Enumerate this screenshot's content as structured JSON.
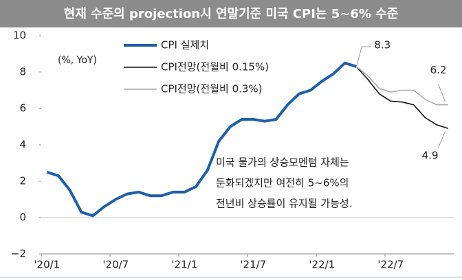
{
  "chart_data": {
    "type": "line",
    "title": "현재 수준의 projection시 연말기준 미국 CPI는 5~6% 수준",
    "unit_label": "(%, YoY)",
    "annotation": [
      "미국 물가의 상승모멘텀 자체는",
      "둔화되겠지만 여전히 5~6%의",
      "전년비 상승률이 유지될 가능성."
    ],
    "categories": [
      "'20/1",
      null,
      null,
      null,
      null,
      null,
      "'20/7",
      null,
      null,
      null,
      null,
      null,
      "'21/1",
      null,
      null,
      null,
      null,
      null,
      "'21/7",
      null,
      null,
      null,
      null,
      null,
      "'22/1",
      null,
      null,
      null,
      null,
      null,
      "'22/7",
      null,
      null,
      null,
      null,
      null
    ],
    "ylim": [
      -2,
      10
    ],
    "yticks": [
      {
        "value": -2,
        "label": "−2"
      },
      0,
      2,
      4,
      6,
      8,
      10
    ],
    "series": [
      {
        "name": "CPI 실제치",
        "color": "#1f5fa8",
        "width": 4,
        "values": [
          2.5,
          2.3,
          1.5,
          0.3,
          0.1,
          0.6,
          1.0,
          1.3,
          1.4,
          1.2,
          1.2,
          1.4,
          1.4,
          1.7,
          2.6,
          4.2,
          5.0,
          5.4,
          5.4,
          5.3,
          5.4,
          6.2,
          6.8,
          7.0,
          7.5,
          7.9,
          8.5,
          8.3,
          null,
          null,
          null,
          null,
          null,
          null,
          null,
          null
        ]
      },
      {
        "name": "CPI전망(전월비 0.15%)",
        "color": "#111111",
        "width": 1.6,
        "values": [
          null,
          null,
          null,
          null,
          null,
          null,
          null,
          null,
          null,
          null,
          null,
          null,
          null,
          null,
          null,
          null,
          null,
          null,
          null,
          null,
          null,
          null,
          null,
          null,
          null,
          null,
          null,
          8.3,
          7.6,
          6.8,
          6.4,
          6.35,
          6.2,
          5.5,
          5.1,
          4.9
        ]
      },
      {
        "name": "CPI전망(전월비 0.3%)",
        "color": "#aaaaaa",
        "width": 1.6,
        "values": [
          null,
          null,
          null,
          null,
          null,
          null,
          null,
          null,
          null,
          null,
          null,
          null,
          null,
          null,
          null,
          null,
          null,
          null,
          null,
          null,
          null,
          null,
          null,
          null,
          null,
          null,
          null,
          8.3,
          7.8,
          7.1,
          6.9,
          7.0,
          7.0,
          6.5,
          6.2,
          6.2
        ]
      }
    ]
  }
}
